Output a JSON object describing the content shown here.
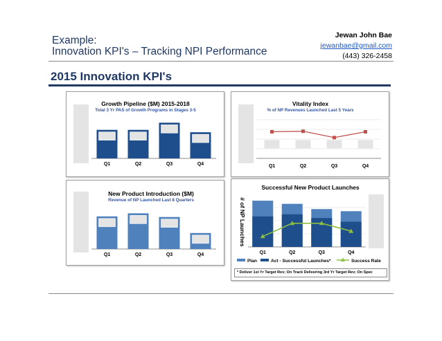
{
  "header": {
    "example_label": "Example:",
    "title": "Innovation KPI's – Tracking NPI Performance",
    "author_name": "Jewan John Bae",
    "author_email": "jewanbae@gmail.com",
    "author_phone": "(443) 326-2458"
  },
  "section_title": "2015 Innovation KPI's",
  "colors": {
    "navy": "#1f4e8c",
    "medium_blue": "#4f81bd",
    "vitality_red": "#c0504d",
    "success_green": "#8cbf3f",
    "placeholder_gray": "#e4e4e4",
    "title_navy": "#1f3864"
  },
  "chart_data": [
    {
      "type": "bar",
      "title": "Growth Pipeline ($M) 2015-2018",
      "subtitle": "Total 3 Yr PAS of Growth Programs in Stages 3-5",
      "categories": [
        "Q1",
        "Q2",
        "Q3",
        "Q4"
      ],
      "values": [
        48,
        48,
        60,
        44
      ],
      "ylim": [
        0,
        100
      ],
      "xlabel": "",
      "ylabel": "",
      "grid": false,
      "note": "y-axis tick labels are masked"
    },
    {
      "type": "line",
      "title": "Vitality Index",
      "subtitle": "% of NP Revenues Launched Last 5 Years",
      "categories": [
        "Q1",
        "Q2",
        "Q3",
        "Q4"
      ],
      "series": [
        {
          "name": "",
          "values": [
            55,
            56,
            43,
            55
          ],
          "color": "#c0504d",
          "marker": "square"
        }
      ],
      "ylim": [
        0,
        100
      ],
      "grid": true,
      "note": "y-axis tick labels are masked"
    },
    {
      "type": "bar",
      "title": "New Product Introduction ($M)",
      "subtitle": "Revenue of NP Launched Last 8 Quarters",
      "categories": [
        "Q1",
        "Q2",
        "Q3",
        "Q4"
      ],
      "values": [
        53,
        58,
        52,
        26
      ],
      "ylim": [
        0,
        100
      ],
      "grid": false,
      "note": "y-axis tick labels are masked"
    },
    {
      "type": "bar",
      "title": "Successful New Product Launches",
      "ylabel": "# of NP Launches",
      "categories": [
        "Q1",
        "Q2",
        "Q3",
        "Q4"
      ],
      "series": [
        {
          "name": "Plan",
          "values": [
            88,
            82,
            72,
            68
          ],
          "color": "#4f81bd"
        },
        {
          "name": "Act - Successful Launches*",
          "values": [
            58,
            62,
            55,
            48
          ],
          "color": "#1f4e8c"
        },
        {
          "name": "Success Rate",
          "type": "line",
          "values": [
            20,
            45,
            45,
            30
          ],
          "color": "#8cbf3f",
          "marker": "triangle"
        }
      ],
      "ylim": [
        0,
        100
      ],
      "grid": true,
      "legend": "bottom",
      "footnote": "* Deliver 1st Yr Target Rev; On Track Delivering 3rd Yr Target Rev; On Spec",
      "note": "both y-axes tick labels are masked"
    }
  ]
}
